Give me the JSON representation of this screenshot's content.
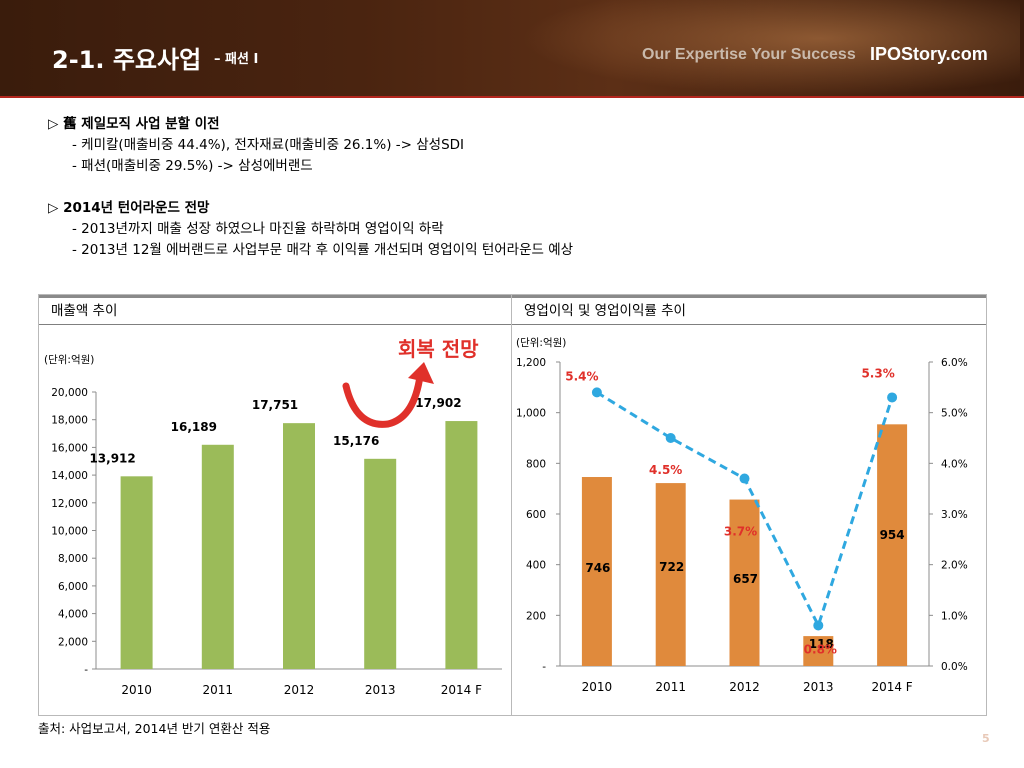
{
  "header": {
    "title": "2-1. 주요사업",
    "subtitle": "– 패션 I",
    "tagline": "Our Expertise Your Success",
    "site": "IPOStory.com"
  },
  "bullets": {
    "section1": {
      "head": "▷  舊 제일모직 사업 분할 이전",
      "items": [
        "- 케미칼(매출비중 44.4%), 전자재료(매출비중 26.1%) -> 삼성SDI",
        "- 패션(매출비중 29.5%) -> 삼성에버랜드"
      ]
    },
    "section2": {
      "head": "▷  2014년 턴어라운드 전망",
      "items": [
        "- 2013년까지 매출 성장 하였으나 마진율 하락하며 영업이익 하락",
        "- 2013년 12월 에버랜드로 사업부문 매각 후 이익률 개선되며 영업이익 턴어라운드 예상"
      ]
    }
  },
  "left_panel": {
    "title": "매출액 추이",
    "unit": "(단위:억원)",
    "annotation": "회복 전망"
  },
  "right_panel": {
    "title": "영업이익 및 영업이익률 추이",
    "unit": "(단위:억원)"
  },
  "footnote": "출처: 사업보고서, 2014년 반기 연환산 적용",
  "page_number": "5",
  "colors": {
    "revenue_bar": "#9bbb59",
    "profit_bar": "#e08a3c",
    "margin_line": "#2fa8e0",
    "label_red": "#e0302a",
    "accent_red": "#b3261e"
  },
  "chart_data": [
    {
      "type": "bar",
      "title": "매출액 추이",
      "categories": [
        "2010",
        "2011",
        "2012",
        "2013",
        "2014 F"
      ],
      "series": [
        {
          "values": [
            13912,
            16189,
            17751,
            15176,
            17902
          ]
        }
      ],
      "data_labels": [
        "13,912",
        "16,189",
        "17,751",
        "15,176",
        "17,902"
      ],
      "ylim": [
        0,
        20000
      ],
      "yticks": [
        0,
        2000,
        4000,
        6000,
        8000,
        10000,
        12000,
        14000,
        16000,
        18000,
        20000
      ],
      "ytick_labels": [
        "-",
        "2,000",
        "4,000",
        "6,000",
        "8,000",
        "10,000",
        "12,000",
        "14,000",
        "16,000",
        "18,000",
        "20,000"
      ],
      "ylabel": "(단위:억원)",
      "grid": false,
      "legend": "none"
    },
    {
      "type": "bar",
      "title": "영업이익 및 영업이익률 추이",
      "categories": [
        "2010",
        "2011",
        "2012",
        "2013",
        "2014 F"
      ],
      "series": [
        {
          "type": "bar",
          "axis": "left",
          "values": [
            746,
            722,
            657,
            118,
            954
          ],
          "data_labels": [
            "746",
            "722",
            "657",
            "118",
            "954"
          ]
        },
        {
          "type": "line",
          "axis": "right",
          "style": "dashed",
          "values": [
            5.4,
            4.5,
            3.7,
            0.8,
            5.3
          ],
          "data_labels": [
            "5.4%",
            "4.5%",
            "3.7%",
            "0.8%",
            "5.3%"
          ]
        }
      ],
      "ylim": [
        0,
        1200
      ],
      "yticks": [
        0,
        200,
        400,
        600,
        800,
        1000,
        1200
      ],
      "ytick_labels": [
        "-",
        "200",
        "400",
        "600",
        "800",
        "1,000",
        "1,200"
      ],
      "y2lim": [
        0,
        6
      ],
      "y2ticks": [
        0,
        1,
        2,
        3,
        4,
        5,
        6
      ],
      "y2tick_labels": [
        "0.0%",
        "1.0%",
        "2.0%",
        "3.0%",
        "4.0%",
        "5.0%",
        "6.0%"
      ],
      "ylabel": "(단위:억원)",
      "grid": false,
      "legend": "none"
    }
  ]
}
